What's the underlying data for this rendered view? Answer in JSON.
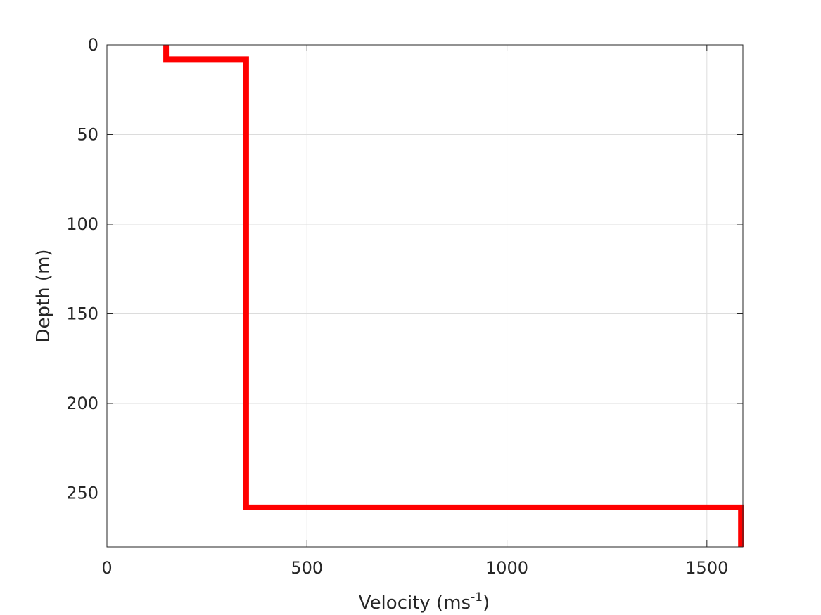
{
  "chart_data": {
    "type": "line",
    "xlabel_main": "Velocity (ms",
    "xlabel_sup": "-1",
    "xlabel_tail": ")",
    "ylabel": "Depth (m)",
    "xlim": [
      0,
      1590
    ],
    "ylim": [
      0,
      280
    ],
    "y_reversed": true,
    "grid": true,
    "x_ticks": [
      0,
      500,
      1000,
      1500
    ],
    "x_tick_labels": [
      "0",
      "500",
      "1000",
      "1500"
    ],
    "y_ticks": [
      0,
      50,
      100,
      150,
      200,
      250
    ],
    "y_tick_labels": [
      "0",
      "50",
      "100",
      "150",
      "200",
      "250"
    ],
    "series": [
      {
        "color": "#ff0000",
        "x": [
          148,
          148,
          348,
          348,
          1585,
          1585
        ],
        "y": [
          0,
          8,
          8,
          258,
          258,
          280
        ]
      }
    ]
  }
}
